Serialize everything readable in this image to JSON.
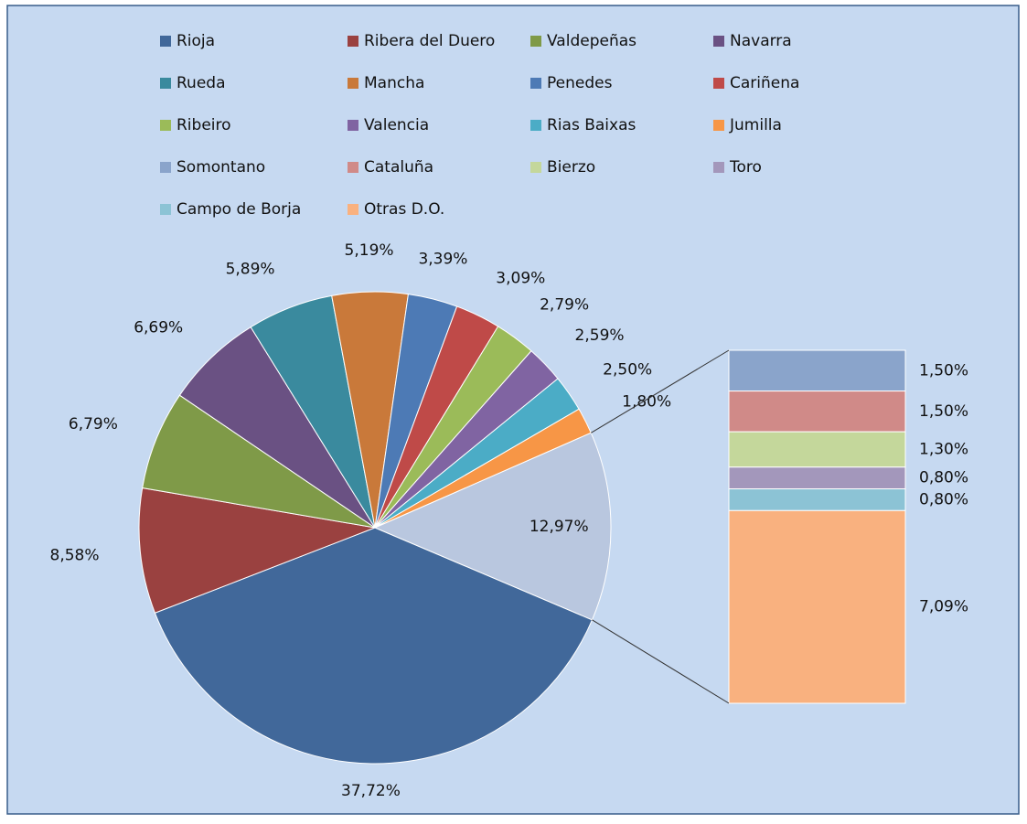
{
  "chart_data": {
    "type": "pie-of-bar",
    "categories": [
      "Rioja",
      "Ribera del Duero",
      "Valdepeñas",
      "Navarra",
      "Rueda",
      "Mancha",
      "Penedes",
      "Cariñena",
      "Ribeiro",
      "Valencia",
      "Rias Baixas",
      "Jumilla",
      "Somontano",
      "Cataluña",
      "Bierzo",
      "Toro",
      "Campo de Borja",
      "Otras D.O."
    ],
    "values": [
      37.72,
      8.58,
      6.79,
      6.69,
      5.89,
      5.19,
      3.39,
      3.09,
      2.79,
      2.59,
      2.5,
      1.8,
      1.5,
      1.5,
      1.3,
      0.8,
      0.8,
      7.09
    ],
    "value_labels": [
      "37,72%",
      "8,58%",
      "6,79%",
      "6,69%",
      "5,89%",
      "5,19%",
      "3,39%",
      "3,09%",
      "2,79%",
      "2,59%",
      "2,50%",
      "1,80%",
      "1,50%",
      "1,50%",
      "1,30%",
      "0,80%",
      "0,80%",
      "7,09%"
    ],
    "colors": [
      "#41689a",
      "#9a4140",
      "#7f9a48",
      "#6a5183",
      "#3a8a9e",
      "#c9793a",
      "#4d7ab5",
      "#bf4a48",
      "#9bbb59",
      "#8064a2",
      "#4bacc6",
      "#f79646",
      "#8aa4cb",
      "#d08a88",
      "#c4d79b",
      "#a397bb",
      "#8cc3d5",
      "#f9b17f"
    ],
    "second_plot_count": 6,
    "other_value": 12.97,
    "other_value_label": "12,97%",
    "other_color": "#b9c7df",
    "legend": "top"
  }
}
